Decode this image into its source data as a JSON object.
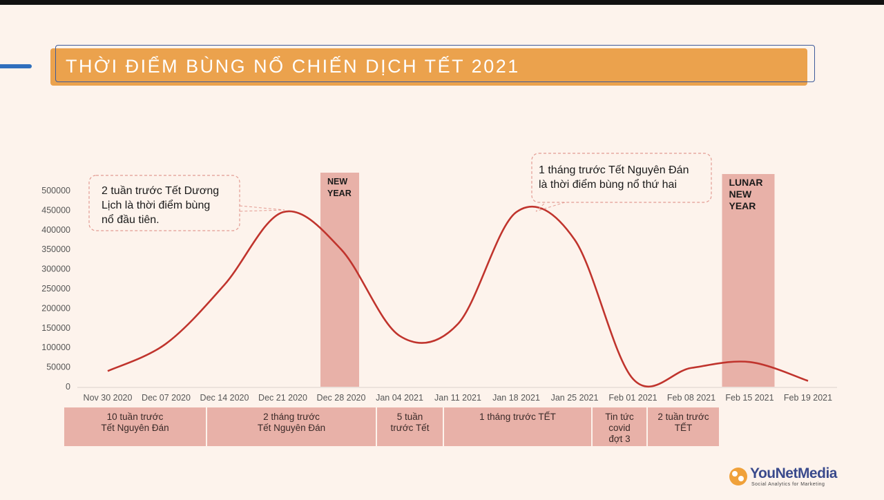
{
  "title": "THỜI ĐIỂM BÙNG NỔ CHIẾN DỊCH TẾT 2021",
  "chart_data": {
    "type": "line",
    "categories": [
      "Nov 30 2020",
      "Dec 07 2020",
      "Dec 14 2020",
      "Dec 21 2020",
      "Dec 28 2020",
      "Jan 04 2021",
      "Jan 11 2021",
      "Jan 18 2021",
      "Jan 25 2021",
      "Feb 01 2021",
      "Feb 08 2021",
      "Feb 15 2021",
      "Feb 19 2021"
    ],
    "yticks": [
      "0",
      "50000",
      "100000",
      "150000",
      "200000",
      "250000",
      "300000",
      "350000",
      "400000",
      "450000",
      "500000"
    ],
    "ylim": [
      0,
      500000
    ],
    "grid": false,
    "series": [
      {
        "color": "#c0342d",
        "values": [
          40000,
          110000,
          260000,
          445000,
          350000,
          130000,
          160000,
          445000,
          375000,
          20000,
          48000,
          63000,
          15000
        ]
      }
    ],
    "highlights": [
      {
        "label_lines": [
          "NEW",
          "YEAR"
        ],
        "category": "Dec 28 2020"
      },
      {
        "label_lines": [
          "LUNAR",
          "NEW",
          "YEAR"
        ],
        "category": "Feb 15 2021"
      }
    ],
    "annotations": [
      {
        "lines": [
          "2 tuần trước Tết Dương",
          "Lịch là thời điểm bùng",
          "nổ đầu tiên."
        ],
        "target": "Dec 21 2020"
      },
      {
        "lines": [
          "1 tháng trước Tết Nguyên Đán",
          "là thời điểm bùng nổ thứ hai"
        ],
        "target": "Jan 18 2021"
      }
    ]
  },
  "periods": [
    {
      "lines": [
        "10 tuần trước",
        "Tết Nguyên Đán"
      ]
    },
    {
      "lines": [
        "2 tháng trước",
        "Tết Nguyên Đán"
      ]
    },
    {
      "lines": [
        "5 tuần",
        "trước Tết"
      ]
    },
    {
      "lines": [
        "1 tháng trước TẾT"
      ]
    },
    {
      "lines": [
        "Tin tức",
        "covid",
        "đợt 3"
      ]
    },
    {
      "lines": [
        "2 tuần trước",
        "TẾT"
      ]
    }
  ],
  "logo": {
    "name": "YouNetMedia",
    "tagline": "Social Analytics for Marketing"
  }
}
